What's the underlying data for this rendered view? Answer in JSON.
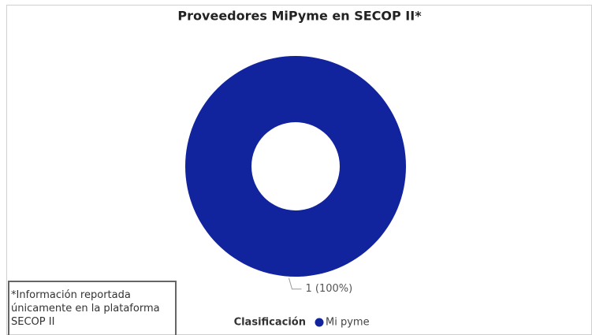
{
  "chart_data": {
    "type": "donut",
    "title": "Proveedores MiPyme en SECOP II*",
    "legend_title": "Clasificación",
    "categories": [
      "Mi pyme"
    ],
    "values": [
      1
    ],
    "value_labels": [
      "1 (100%)"
    ],
    "colors": [
      "#12239e"
    ]
  },
  "note": "*Información reportada únicamente en la plataforma SECOP II"
}
